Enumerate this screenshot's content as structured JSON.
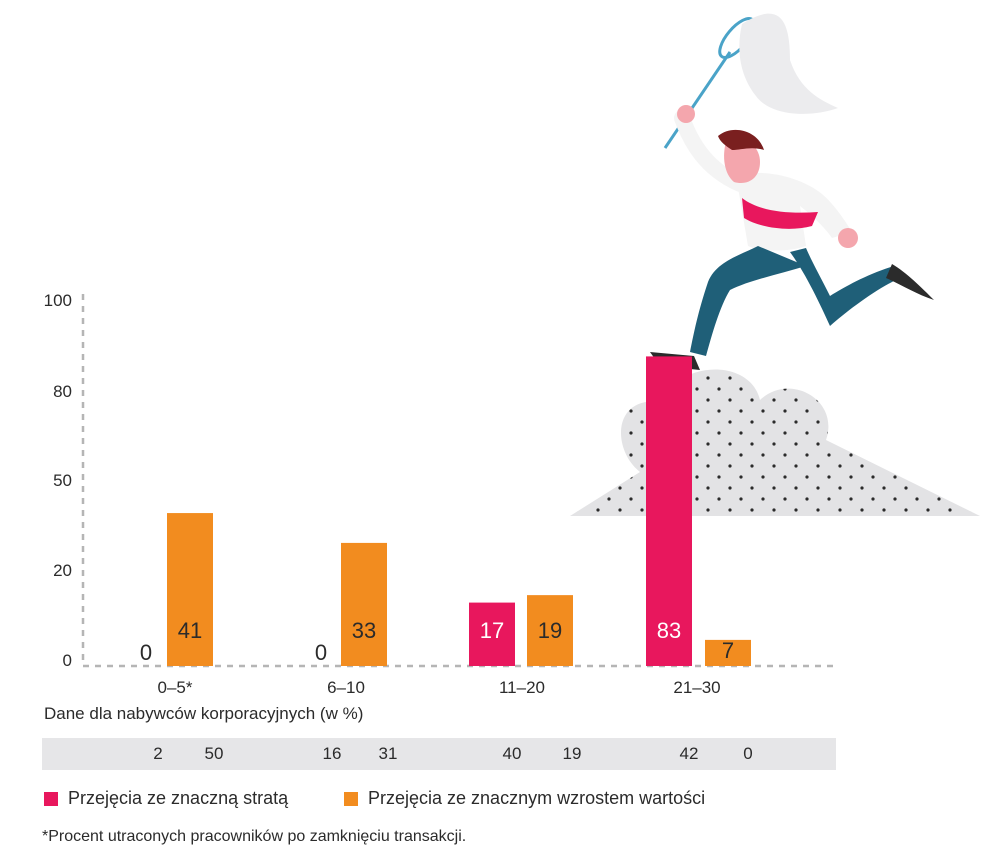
{
  "chart_data": {
    "type": "bar",
    "categories": [
      "0–5*",
      "6–10",
      "11–20",
      "21–30"
    ],
    "y_tick_labels": [
      "0",
      "20",
      "50",
      "80",
      "100"
    ],
    "series": [
      {
        "name": "Przejęcia ze znaczną stratą",
        "color": "#e8175d",
        "values": [
          0,
          0,
          17,
          83
        ]
      },
      {
        "name": "Przejęcia ze znacznym wzrostem wartości",
        "color": "#f28c1f",
        "values": [
          41,
          33,
          19,
          7
        ]
      }
    ],
    "corporate_buyers": {
      "label": "Dane dla nabywców korporacyjnych (w %)",
      "loss": [
        2,
        16,
        40,
        42
      ],
      "growth": [
        50,
        31,
        19,
        0
      ]
    },
    "footnote": "*Procent utraconych pracowników po zamknięciu transakcji.",
    "grid": false,
    "legend_position": "bottom-left"
  }
}
